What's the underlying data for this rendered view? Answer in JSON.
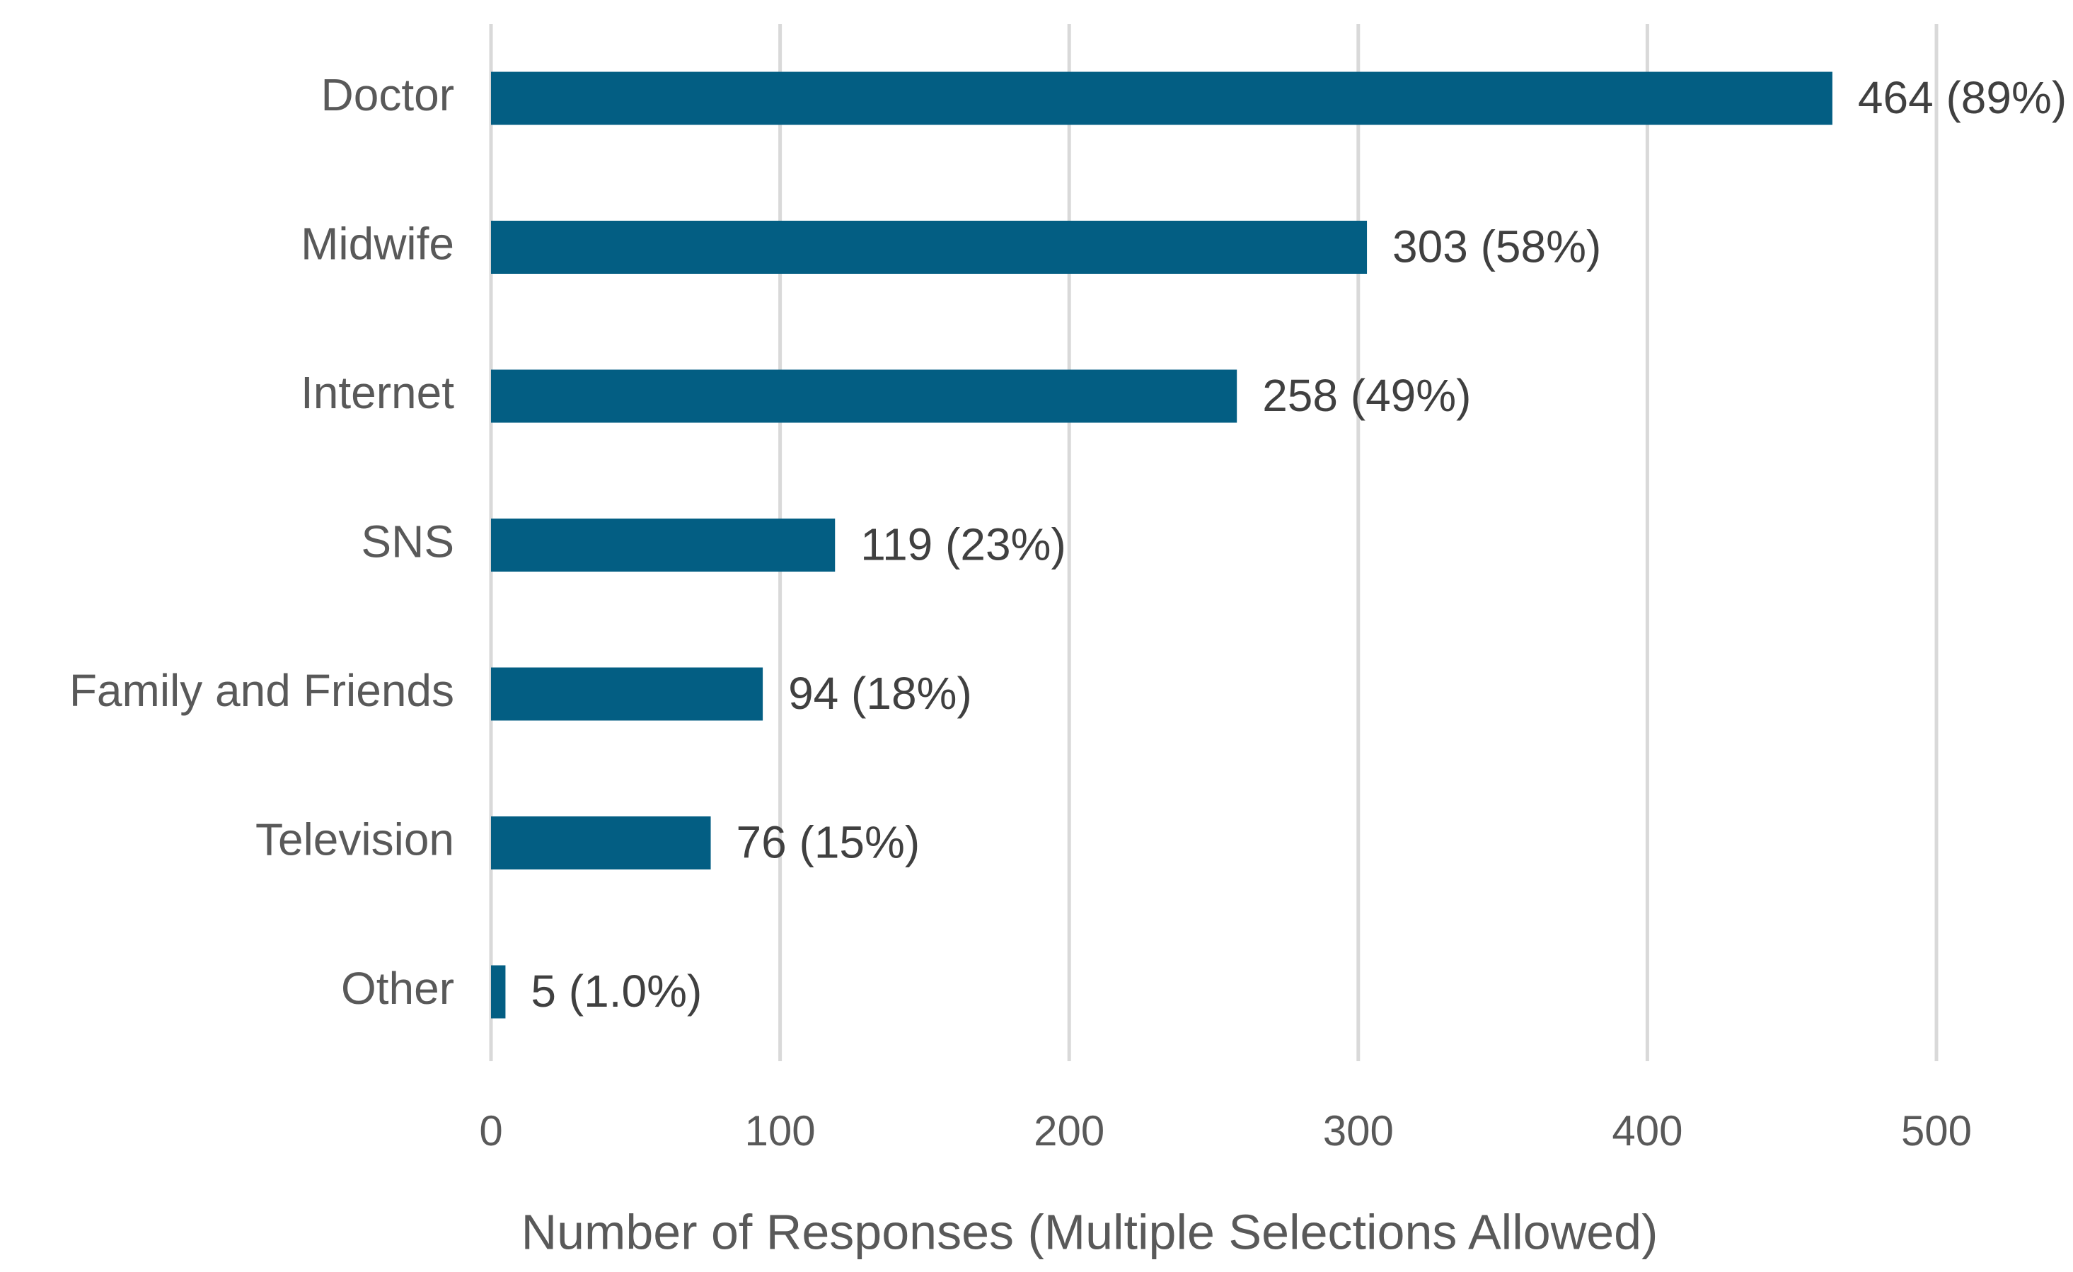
{
  "chart_data": {
    "type": "bar",
    "orientation": "horizontal",
    "x_label": "Number of Responses (Multiple Selections Allowed)",
    "categories": [
      "Doctor",
      "Midwife",
      "Internet",
      "SNS",
      "Family and Friends",
      "Television",
      "Other"
    ],
    "values": [
      464,
      303,
      258,
      119,
      94,
      76,
      5
    ],
    "value_labels": [
      "464 (89%)",
      "303 (58%)",
      "258 (49%)",
      "119 (23%)",
      "94 (18%)",
      "76 (15%)",
      "5 (1.0%)"
    ],
    "color": "#035e83",
    "xlim": [
      0,
      500
    ],
    "xticks": [
      0,
      100,
      200,
      300,
      400,
      500
    ],
    "grid": true
  }
}
